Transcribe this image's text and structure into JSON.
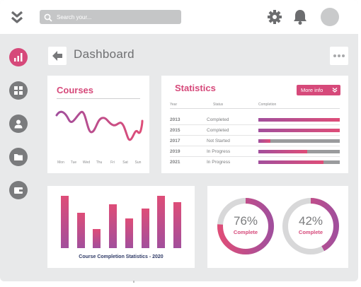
{
  "header": {
    "search_placeholder": "Search your...",
    "icons": [
      "chevrons-down-icon",
      "search-icon",
      "gear-icon",
      "bell-icon",
      "avatar"
    ]
  },
  "sidebar": {
    "items": [
      {
        "name": "chart",
        "active": true
      },
      {
        "name": "grid",
        "active": false
      },
      {
        "name": "user",
        "active": false
      },
      {
        "name": "folder",
        "active": false
      },
      {
        "name": "wallet",
        "active": false
      }
    ]
  },
  "page": {
    "title": "Dashboard"
  },
  "courses": {
    "title": "Courses",
    "days": [
      "Mon",
      "Tue",
      "Wed",
      "Thu",
      "Fri",
      "Sat",
      "Sun"
    ]
  },
  "statistics": {
    "title": "Statistics",
    "more_info_label": "More info",
    "columns": [
      "Year",
      "Status",
      "Completion"
    ],
    "rows": [
      {
        "year": "2013",
        "status": "Completed",
        "completion": 1.0
      },
      {
        "year": "2015",
        "status": "Completed",
        "completion": 1.0
      },
      {
        "year": "2017",
        "status": "Not Started",
        "completion": 0.15
      },
      {
        "year": "2019",
        "status": "In Progress",
        "completion": 0.6
      },
      {
        "year": "2021",
        "status": "In Progress",
        "completion": 0.8
      }
    ]
  },
  "completion_chart": {
    "caption": "Course Completion Statistics - 2020"
  },
  "donuts": [
    {
      "percent_label": "76%",
      "value": 76,
      "label": "Complete"
    },
    {
      "percent_label": "42%",
      "value": 42,
      "label": "Complete"
    }
  ],
  "colors": {
    "accent": "#d6497a",
    "accent_purple": "#a24f9c",
    "track": "#d8d8d9",
    "text_muted": "#7b7c7e"
  }
}
